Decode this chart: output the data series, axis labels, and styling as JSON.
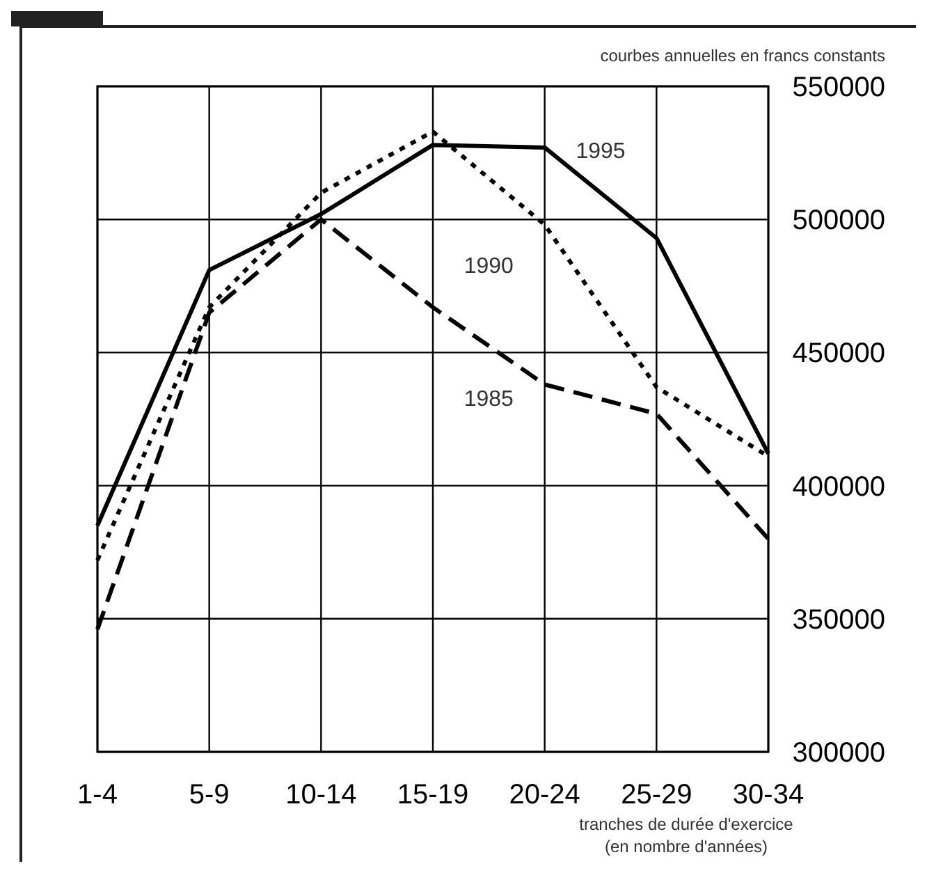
{
  "chart_data": {
    "type": "line",
    "ylabel": "courbes annuelles en francs constants",
    "xlabel": "tranches de durée d'exercice\n(en nombre d'années)",
    "categories": [
      "1-4",
      "5-9",
      "10-14",
      "15-19",
      "20-24",
      "25-29",
      "30-34"
    ],
    "series": [
      {
        "name": "1995",
        "color": "#000000",
        "line_style": "solid",
        "values": [
          385000,
          481000,
          502000,
          528000,
          527000,
          493000,
          412000
        ]
      },
      {
        "name": "1990",
        "color": "#000000",
        "line_style": "dotted",
        "values": [
          372000,
          467000,
          510000,
          533000,
          498000,
          437000,
          411000
        ]
      },
      {
        "name": "1985",
        "color": "#000000",
        "line_style": "dashed",
        "values": [
          346000,
          465000,
          500000,
          467000,
          438000,
          427000,
          380000
        ]
      }
    ],
    "ylim": [
      300000,
      550000
    ],
    "yticks": [
      300000,
      350000,
      400000,
      450000,
      500000,
      550000
    ],
    "grid": true,
    "marker": "none"
  }
}
